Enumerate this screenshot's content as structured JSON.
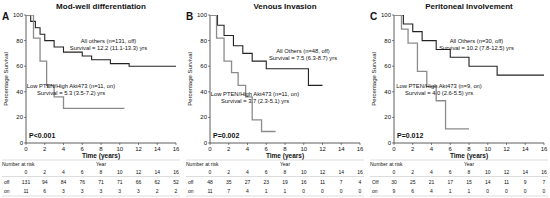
{
  "chart_data": [
    {
      "type": "line",
      "panel": "A",
      "title": "Mod-well differentiation",
      "x_label": "Time (years)",
      "y_label": "Percentage Survival",
      "xlim": [
        0,
        16
      ],
      "xticks": [
        0,
        2,
        4,
        6,
        8,
        10,
        12,
        14,
        16
      ],
      "ylim": [
        0,
        100
      ],
      "yticks": [
        0,
        20,
        40,
        60,
        80,
        100
      ],
      "grid": false,
      "annotations": [
        "P<0.001"
      ],
      "series": [
        {
          "name": "All others (n=131, off)",
          "annotation": "Survival = 12.2 (11.1-13.3) yrs",
          "color": "#222222",
          "line_style": "solid",
          "x": [
            0,
            0.5,
            0.5,
            1,
            1,
            1.5,
            1.5,
            2,
            2,
            3,
            3,
            4,
            4,
            6,
            6,
            7,
            7,
            9,
            9,
            11,
            11,
            16
          ],
          "values": [
            100,
            100,
            95,
            95,
            90,
            90,
            85,
            85,
            80,
            80,
            75,
            75,
            71,
            71,
            68,
            68,
            65,
            65,
            62,
            62,
            60,
            60
          ]
        },
        {
          "name": "Low PTEN/High Akt473 (n=11, on)",
          "annotation": "Survival = 5.3 (3.5-7.2) yrs",
          "color": "#8c8c8c",
          "line_style": "solid",
          "x": [
            0,
            0.8,
            0.8,
            1.5,
            1.5,
            2.2,
            2.2,
            3,
            3,
            4,
            4,
            10.5
          ],
          "values": [
            100,
            100,
            82,
            82,
            64,
            64,
            45,
            45,
            36,
            36,
            27,
            27
          ]
        }
      ],
      "risk_table": {
        "title": "Number at risk",
        "year_label": "Year",
        "years": [
          0,
          2,
          4,
          6,
          8,
          10,
          12,
          14,
          16
        ],
        "rows": [
          {
            "label": "off",
            "values": [
              131,
              94,
              84,
              76,
              71,
              71,
              66,
              62,
              52
            ]
          },
          {
            "label": "on",
            "values": [
              11,
              6,
              3,
              3,
              3,
              3,
              3,
              2,
              2
            ]
          }
        ]
      }
    },
    {
      "type": "line",
      "panel": "B",
      "title": "Venous Invasion",
      "x_label": "Time (years)",
      "y_label": "Percentage Survival",
      "xlim": [
        0,
        16
      ],
      "xticks": [
        0,
        2,
        4,
        6,
        8,
        10,
        12,
        14,
        16
      ],
      "ylim": [
        0,
        100
      ],
      "yticks": [
        0,
        20,
        40,
        60,
        80,
        100
      ],
      "grid": false,
      "annotations": [
        "P=0.002"
      ],
      "series": [
        {
          "name": "All Others (n=48, off)",
          "annotation": "Survival = 7.5 (6.3-8.7) yrs",
          "color": "#222222",
          "line_style": "solid",
          "x": [
            0,
            0.8,
            0.8,
            1.5,
            1.5,
            2.5,
            2.5,
            3.5,
            3.5,
            4.5,
            4.5,
            6,
            6,
            10.5,
            10.5,
            12
          ],
          "values": [
            100,
            100,
            92,
            92,
            84,
            84,
            76,
            76,
            70,
            70,
            64,
            64,
            58,
            58,
            45,
            45
          ]
        },
        {
          "name": "Low PTEN/High Akt473 (n=11, on)",
          "annotation": "Survival = 3.7 (2.3-5.1) yrs",
          "color": "#8c8c8c",
          "line_style": "solid",
          "x": [
            0,
            0.7,
            0.7,
            1.5,
            1.5,
            2.3,
            2.3,
            3,
            3,
            3.8,
            3.8,
            4.5,
            4.5,
            5.5,
            5.5,
            7
          ],
          "values": [
            100,
            100,
            82,
            82,
            64,
            64,
            55,
            55,
            45,
            45,
            36,
            36,
            18,
            18,
            9,
            9
          ]
        }
      ],
      "risk_table": {
        "title": "Number at risk",
        "year_label": "Year",
        "years": [
          0,
          2,
          4,
          6,
          8,
          10,
          12,
          14,
          16
        ],
        "rows": [
          {
            "label": "off",
            "values": [
              48,
              35,
              27,
              23,
              19,
              16,
              11,
              7,
              4
            ]
          },
          {
            "label": "on",
            "values": [
              11,
              7,
              4,
              1,
              1,
              0,
              0,
              0,
              0
            ]
          }
        ]
      }
    },
    {
      "type": "line",
      "panel": "C",
      "title": "Peritoneal Involvement",
      "x_label": "Time (years)",
      "y_label": "Percentage Survival",
      "xlim": [
        0,
        16
      ],
      "xticks": [
        0,
        2,
        4,
        6,
        8,
        10,
        12,
        14,
        16
      ],
      "ylim": [
        0,
        100
      ],
      "yticks": [
        0,
        20,
        40,
        60,
        80,
        100
      ],
      "grid": false,
      "annotations": [
        "P=0.012"
      ],
      "series": [
        {
          "name": "All Others (n=30, off)",
          "annotation": "Survival = 10.2 (7.8-12.5) yrs",
          "color": "#222222",
          "line_style": "solid",
          "x": [
            0,
            1,
            1,
            2,
            2,
            3,
            3,
            4.5,
            4.5,
            6,
            6,
            8,
            8,
            11,
            11,
            16
          ],
          "values": [
            100,
            100,
            93,
            93,
            87,
            87,
            80,
            80,
            73,
            73,
            67,
            67,
            60,
            60,
            53,
            53
          ]
        },
        {
          "name": "Low PTEN/High Akt473 (n=9, on)",
          "annotation": "Survival = 4.0 (2.6-5.5) yrs",
          "color": "#8c8c8c",
          "line_style": "solid",
          "x": [
            0,
            0.8,
            0.8,
            1.5,
            1.5,
            2.5,
            2.5,
            3.5,
            3.5,
            4.5,
            4.5,
            5.5,
            5.5,
            8
          ],
          "values": [
            100,
            100,
            89,
            89,
            78,
            78,
            56,
            56,
            44,
            44,
            33,
            33,
            11,
            11
          ]
        }
      ],
      "risk_table": {
        "title": "Number at risk",
        "year_label": "Year",
        "years": [
          0,
          2,
          4,
          6,
          8,
          10,
          12,
          14,
          16
        ],
        "rows": [
          {
            "label": "Off",
            "values": [
              30,
              25,
              21,
              17,
              15,
              14,
              11,
              9,
              7
            ]
          },
          {
            "label": "on",
            "values": [
              9,
              6,
              4,
              1,
              1,
              0,
              0,
              0,
              0
            ]
          }
        ]
      }
    }
  ]
}
